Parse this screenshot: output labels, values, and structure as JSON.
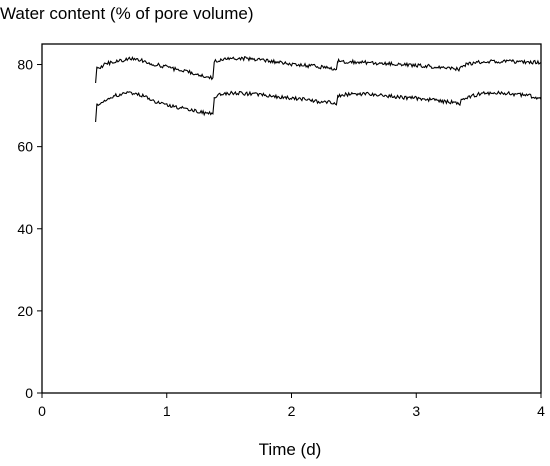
{
  "chart_data": {
    "type": "line",
    "title": "Water content (% of pore volume)",
    "xlabel": "Time (d)",
    "ylabel": "",
    "xlim": [
      0,
      4
    ],
    "ylim": [
      0,
      85
    ],
    "x_ticks": [
      "0",
      "1",
      "2",
      "3",
      "4"
    ],
    "y_ticks": [
      "0",
      "20",
      "40",
      "60",
      "80"
    ],
    "grid": false,
    "legend": "none",
    "line_color": "#000000",
    "series": [
      {
        "x": [
          0.43,
          0.44,
          0.46,
          0.5,
          0.55,
          0.6,
          0.65,
          0.7,
          0.75,
          0.8,
          0.9,
          1.0,
          1.1,
          1.2,
          1.3,
          1.37,
          1.38,
          1.4,
          1.45,
          1.5,
          1.6,
          1.7,
          1.8,
          1.9,
          2.0,
          2.1,
          2.2,
          2.3,
          2.36,
          2.37,
          2.4,
          2.5,
          2.6,
          2.7,
          2.8,
          2.9,
          3.0,
          3.1,
          3.2,
          3.3,
          3.35,
          3.37,
          3.4,
          3.45,
          3.5,
          3.6,
          3.7,
          3.8,
          3.9,
          4.0
        ],
        "y": [
          75.5,
          79.5,
          79.0,
          80.0,
          80.5,
          80.8,
          81.0,
          81.3,
          81.5,
          81.0,
          80.0,
          79.5,
          78.5,
          78.0,
          77.0,
          76.8,
          80.5,
          81.0,
          81.3,
          81.5,
          81.5,
          81.3,
          81.0,
          80.5,
          80.0,
          79.8,
          79.5,
          79.2,
          78.8,
          80.8,
          80.8,
          80.6,
          80.5,
          80.3,
          80.2,
          80.0,
          79.8,
          79.6,
          79.3,
          79.0,
          78.9,
          79.8,
          80.0,
          80.2,
          80.5,
          80.8,
          80.8,
          80.7,
          80.6,
          80.5
        ]
      },
      {
        "x": [
          0.43,
          0.44,
          0.46,
          0.5,
          0.55,
          0.6,
          0.65,
          0.7,
          0.75,
          0.8,
          0.9,
          1.0,
          1.1,
          1.2,
          1.3,
          1.37,
          1.38,
          1.4,
          1.45,
          1.5,
          1.6,
          1.7,
          1.8,
          1.9,
          2.0,
          2.1,
          2.2,
          2.3,
          2.36,
          2.37,
          2.4,
          2.5,
          2.6,
          2.7,
          2.8,
          2.9,
          3.0,
          3.1,
          3.2,
          3.3,
          3.35,
          3.37,
          3.4,
          3.45,
          3.5,
          3.6,
          3.7,
          3.8,
          3.9,
          4.0
        ],
        "y": [
          66.0,
          70.5,
          70.0,
          71.2,
          72.0,
          72.5,
          72.8,
          73.0,
          73.2,
          72.5,
          71.0,
          70.0,
          69.5,
          69.0,
          68.2,
          68.0,
          71.5,
          72.5,
          73.0,
          73.0,
          73.0,
          72.8,
          72.5,
          72.0,
          71.8,
          71.5,
          71.0,
          70.8,
          70.2,
          72.2,
          72.6,
          72.8,
          72.8,
          72.6,
          72.3,
          72.0,
          71.8,
          71.5,
          71.0,
          70.8,
          70.5,
          71.8,
          72.0,
          72.3,
          72.8,
          73.0,
          73.0,
          72.8,
          72.5,
          71.5
        ]
      }
    ]
  }
}
